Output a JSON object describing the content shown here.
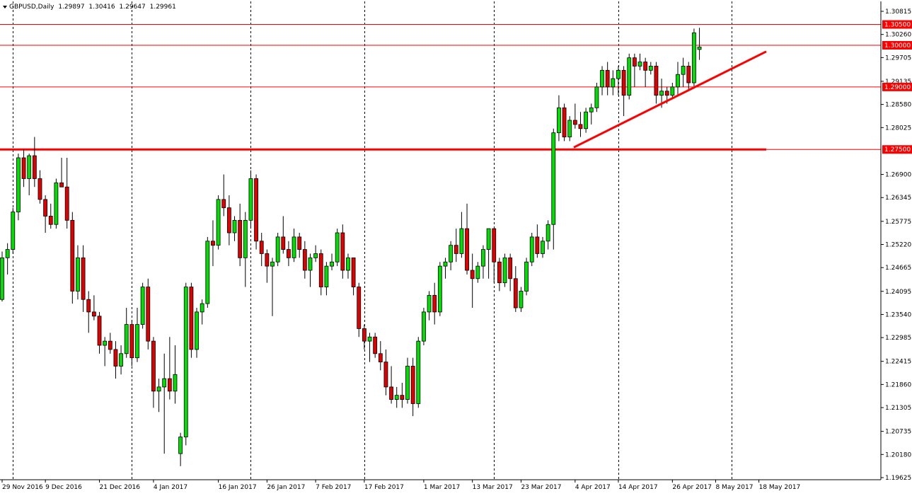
{
  "header": {
    "symbol": "GBPUSD,Daily",
    "open": "1.29897",
    "high": "1.30416",
    "low": "1.29647",
    "close": "1.29961"
  },
  "chart_data": {
    "type": "candlestick",
    "title": "",
    "ylim": [
      1.19625,
      1.30815
    ],
    "grid": "vertical dotted",
    "colors": {
      "bull": "#00e000",
      "bear": "#e00000",
      "wick": "#000000",
      "level": "#ff0000",
      "trendline": "#ff0000"
    },
    "y_ticks": [
      "1.30815",
      "1.30260",
      "1.29705",
      "1.29135",
      "1.28580",
      "1.28025",
      "1.26900",
      "1.26345",
      "1.25775",
      "1.25220",
      "1.24665",
      "1.24095",
      "1.23540",
      "1.22985",
      "1.22415",
      "1.21860",
      "1.21305",
      "1.20735",
      "1.20180",
      "1.19625"
    ],
    "x_ticks": [
      "29 Nov 2016",
      "9 Dec 2016",
      "21 Dec 2016",
      "4 Jan 2017",
      "16 Jan 2017",
      "26 Jan 2017",
      "7 Feb 2017",
      "17 Feb 2017",
      "1 Mar 2017",
      "13 Mar 2017",
      "23 Mar 2017",
      "4 Apr 2017",
      "14 Apr 2017",
      "26 Apr 2017",
      "8 May 2017",
      "18 May 2017"
    ],
    "levels": [
      {
        "value": 1.305,
        "label": "1.30500",
        "bold": false
      },
      {
        "value": 1.3,
        "label": "1.30000",
        "bold": false
      },
      {
        "value": 1.29,
        "label": "1.29000",
        "bold": false
      },
      {
        "value": 1.275,
        "label": "1.27500",
        "bold": true
      }
    ],
    "trendline": {
      "start": [
        1.2755
      ],
      "end": [
        1.2985
      ]
    },
    "candles": [
      [
        1.239,
        1.2505,
        1.2385,
        1.249
      ],
      [
        1.249,
        1.2525,
        1.245,
        1.251
      ],
      [
        1.251,
        1.261,
        1.25,
        1.26
      ],
      [
        1.26,
        1.274,
        1.258,
        1.273
      ],
      [
        1.273,
        1.275,
        1.266,
        1.268
      ],
      [
        1.268,
        1.274,
        1.264,
        1.2735
      ],
      [
        1.2735,
        1.278,
        1.266,
        1.268
      ],
      [
        1.268,
        1.27,
        1.262,
        1.263
      ],
      [
        1.263,
        1.264,
        1.255,
        1.259
      ],
      [
        1.259,
        1.262,
        1.256,
        1.257
      ],
      [
        1.257,
        1.268,
        1.256,
        1.267
      ],
      [
        1.267,
        1.273,
        1.266,
        1.266
      ],
      [
        1.266,
        1.273,
        1.256,
        1.258
      ],
      [
        1.258,
        1.26,
        1.238,
        1.241
      ],
      [
        1.241,
        1.252,
        1.239,
        1.249
      ],
      [
        1.249,
        1.252,
        1.236,
        1.239
      ],
      [
        1.239,
        1.241,
        1.231,
        1.236
      ],
      [
        1.236,
        1.24,
        1.234,
        1.235
      ],
      [
        1.235,
        1.236,
        1.226,
        1.228
      ],
      [
        1.228,
        1.23,
        1.223,
        1.229
      ],
      [
        1.229,
        1.231,
        1.226,
        1.227
      ],
      [
        1.227,
        1.229,
        1.22,
        1.223
      ],
      [
        1.223,
        1.228,
        1.221,
        1.226
      ],
      [
        1.226,
        1.237,
        1.225,
        1.233
      ],
      [
        1.233,
        1.234,
        1.223,
        1.225
      ],
      [
        1.225,
        1.237,
        1.224,
        1.233
      ],
      [
        1.233,
        1.243,
        1.232,
        1.242
      ],
      [
        1.242,
        1.244,
        1.227,
        1.229
      ],
      [
        1.229,
        1.23,
        1.213,
        1.217
      ],
      [
        1.217,
        1.22,
        1.212,
        1.218
      ],
      [
        1.218,
        1.226,
        1.202,
        1.22
      ],
      [
        1.22,
        1.23,
        1.215,
        1.217
      ],
      [
        1.217,
        1.228,
        1.214,
        1.221
      ],
      [
        1.202,
        1.207,
        1.199,
        1.206
      ],
      [
        1.206,
        1.243,
        1.204,
        1.242
      ],
      [
        1.242,
        1.243,
        1.225,
        1.227
      ],
      [
        1.227,
        1.237,
        1.225,
        1.236
      ],
      [
        1.236,
        1.239,
        1.233,
        1.238
      ],
      [
        1.238,
        1.254,
        1.237,
        1.253
      ],
      [
        1.253,
        1.258,
        1.247,
        1.252
      ],
      [
        1.252,
        1.264,
        1.251,
        1.263
      ],
      [
        1.263,
        1.269,
        1.259,
        1.261
      ],
      [
        1.261,
        1.264,
        1.252,
        1.255
      ],
      [
        1.255,
        1.259,
        1.253,
        1.258
      ],
      [
        1.258,
        1.262,
        1.247,
        1.249
      ],
      [
        1.249,
        1.26,
        1.242,
        1.258
      ],
      [
        1.258,
        1.27,
        1.256,
        1.268
      ],
      [
        1.268,
        1.269,
        1.251,
        1.253
      ],
      [
        1.253,
        1.255,
        1.247,
        1.25
      ],
      [
        1.25,
        1.251,
        1.243,
        1.247
      ],
      [
        1.247,
        1.249,
        1.235,
        1.248
      ],
      [
        1.248,
        1.255,
        1.247,
        1.254
      ],
      [
        1.254,
        1.259,
        1.25,
        1.251
      ],
      [
        1.251,
        1.253,
        1.247,
        1.249
      ],
      [
        1.249,
        1.256,
        1.248,
        1.254
      ],
      [
        1.254,
        1.255,
        1.249,
        1.251
      ],
      [
        1.251,
        1.253,
        1.244,
        1.246
      ],
      [
        1.246,
        1.25,
        1.242,
        1.249
      ],
      [
        1.249,
        1.252,
        1.248,
        1.25
      ],
      [
        1.25,
        1.251,
        1.24,
        1.242
      ],
      [
        1.242,
        1.248,
        1.24,
        1.247
      ],
      [
        1.247,
        1.25,
        1.246,
        1.248
      ],
      [
        1.248,
        1.256,
        1.247,
        1.255
      ],
      [
        1.255,
        1.257,
        1.244,
        1.246
      ],
      [
        1.246,
        1.25,
        1.244,
        1.249
      ],
      [
        1.249,
        1.249,
        1.24,
        1.242
      ],
      [
        1.242,
        1.243,
        1.23,
        1.232
      ],
      [
        1.232,
        1.233,
        1.227,
        1.229
      ],
      [
        1.229,
        1.231,
        1.224,
        1.23
      ],
      [
        1.23,
        1.231,
        1.225,
        1.226
      ],
      [
        1.226,
        1.229,
        1.222,
        1.224
      ],
      [
        1.224,
        1.227,
        1.216,
        1.218
      ],
      [
        1.218,
        1.223,
        1.214,
        1.215
      ],
      [
        1.215,
        1.218,
        1.213,
        1.216
      ],
      [
        1.216,
        1.219,
        1.213,
        1.215
      ],
      [
        1.215,
        1.225,
        1.214,
        1.223
      ],
      [
        1.223,
        1.225,
        1.211,
        1.214
      ],
      [
        1.214,
        1.23,
        1.213,
        1.229
      ],
      [
        1.229,
        1.237,
        1.228,
        1.236
      ],
      [
        1.236,
        1.241,
        1.234,
        1.24
      ],
      [
        1.24,
        1.243,
        1.233,
        1.236
      ],
      [
        1.236,
        1.248,
        1.235,
        1.247
      ],
      [
        1.247,
        1.249,
        1.244,
        1.248
      ],
      [
        1.248,
        1.253,
        1.246,
        1.252
      ],
      [
        1.252,
        1.256,
        1.248,
        1.25
      ],
      [
        1.25,
        1.26,
        1.249,
        1.256
      ],
      [
        1.256,
        1.262,
        1.245,
        1.246
      ],
      [
        1.246,
        1.25,
        1.237,
        1.244
      ],
      [
        1.244,
        1.248,
        1.243,
        1.247
      ],
      [
        1.247,
        1.252,
        1.244,
        1.251
      ],
      [
        1.251,
        1.256,
        1.244,
        1.256
      ],
      [
        1.256,
        1.256,
        1.243,
        1.248
      ],
      [
        1.248,
        1.249,
        1.241,
        1.243
      ],
      [
        1.243,
        1.25,
        1.242,
        1.249
      ],
      [
        1.249,
        1.25,
        1.241,
        1.244
      ],
      [
        1.244,
        1.247,
        1.236,
        1.237
      ],
      [
        1.237,
        1.242,
        1.236,
        1.241
      ],
      [
        1.241,
        1.249,
        1.24,
        1.248
      ],
      [
        1.248,
        1.255,
        1.247,
        1.254
      ],
      [
        1.254,
        1.257,
        1.249,
        1.25
      ],
      [
        1.25,
        1.254,
        1.249,
        1.253
      ],
      [
        1.253,
        1.258,
        1.251,
        1.257
      ],
      [
        1.257,
        1.28,
        1.251,
        1.279
      ],
      [
        1.279,
        1.288,
        1.277,
        1.285
      ],
      [
        1.285,
        1.286,
        1.277,
        1.278
      ],
      [
        1.278,
        1.283,
        1.277,
        1.282
      ],
      [
        1.282,
        1.286,
        1.28,
        1.281
      ],
      [
        1.281,
        1.284,
        1.278,
        1.28
      ],
      [
        1.28,
        1.285,
        1.279,
        1.284
      ],
      [
        1.284,
        1.286,
        1.281,
        1.285
      ],
      [
        1.285,
        1.291,
        1.284,
        1.29
      ],
      [
        1.29,
        1.295,
        1.288,
        1.294
      ],
      [
        1.294,
        1.296,
        1.288,
        1.29
      ],
      [
        1.29,
        1.294,
        1.288,
        1.292
      ],
      [
        1.292,
        1.295,
        1.288,
        1.294
      ],
      [
        1.294,
        1.295,
        1.283,
        1.288
      ],
      [
        1.288,
        1.298,
        1.287,
        1.297
      ],
      [
        1.297,
        1.298,
        1.29,
        1.295
      ],
      [
        1.295,
        1.298,
        1.294,
        1.296
      ],
      [
        1.296,
        1.297,
        1.29,
        1.294
      ],
      [
        1.294,
        1.296,
        1.293,
        1.295
      ],
      [
        1.295,
        1.296,
        1.286,
        1.288
      ],
      [
        1.288,
        1.292,
        1.285,
        1.289
      ],
      [
        1.289,
        1.29,
        1.286,
        1.288
      ],
      [
        1.288,
        1.291,
        1.287,
        1.29
      ],
      [
        1.29,
        1.296,
        1.288,
        1.293
      ],
      [
        1.293,
        1.297,
        1.29,
        1.295
      ],
      [
        1.295,
        1.296,
        1.289,
        1.291
      ],
      [
        1.291,
        1.304,
        1.29,
        1.303
      ],
      [
        1.299,
        1.3042,
        1.2965,
        1.2996
      ]
    ]
  }
}
